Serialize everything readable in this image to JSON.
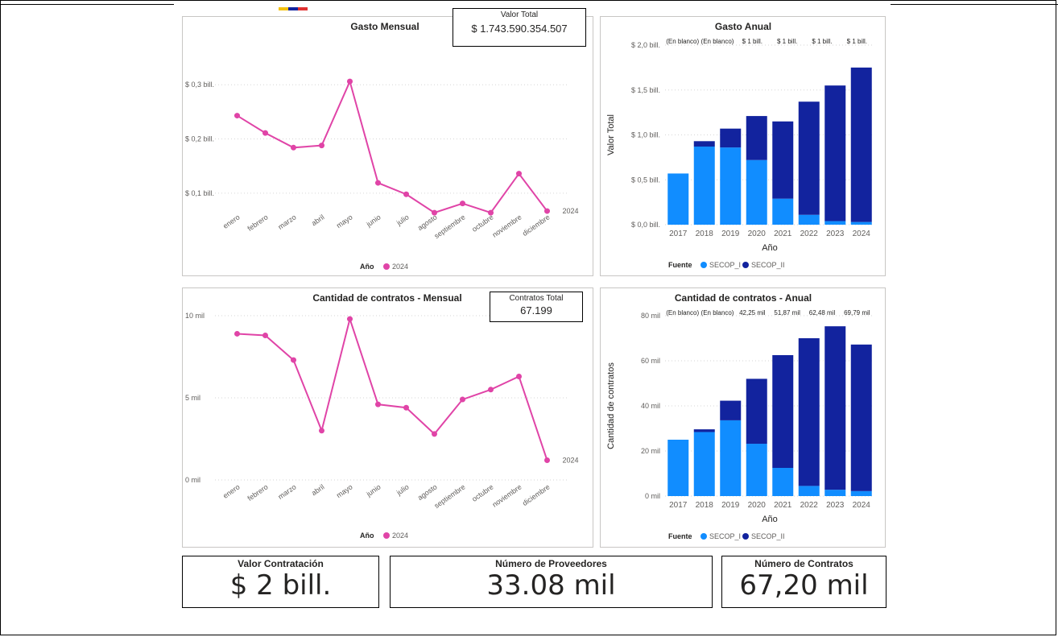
{
  "colors": {
    "line": "#e044a7",
    "secop_i": "#118dff",
    "secop_ii": "#12239e"
  },
  "months": [
    "enero",
    "febrero",
    "marzo",
    "abril",
    "mayo",
    "junio",
    "julio",
    "agosto",
    "septiembre",
    "octubre",
    "noviembre",
    "diciembre"
  ],
  "years": [
    "2017",
    "2018",
    "2019",
    "2020",
    "2021",
    "2022",
    "2023",
    "2024"
  ],
  "cards": {
    "valor_total": {
      "title": "Valor Total",
      "value": "$ 1.743.590.354.507"
    },
    "contratos_total": {
      "title": "Contratos Total",
      "value": "67.199"
    }
  },
  "kpis": [
    {
      "title": "Valor Contratación",
      "value": "$ 2 bill."
    },
    {
      "title": "Número de Proveedores",
      "value": "33.08 mil"
    },
    {
      "title": "Número de Contratos",
      "value": "67,20 mil"
    }
  ],
  "chart_data": [
    {
      "type": "line",
      "title": "Gasto Mensual",
      "x": [
        "enero",
        "febrero",
        "marzo",
        "abril",
        "mayo",
        "junio",
        "julio",
        "agosto",
        "septiembre",
        "octubre",
        "noviembre",
        "diciembre"
      ],
      "y_ticks": [
        {
          "value": 0.1,
          "label": "$ 0,1 bill."
        },
        {
          "value": 0.2,
          "label": "$ 0,2 bill."
        },
        {
          "value": 0.3,
          "label": "$ 0,3 bill."
        }
      ],
      "ylim": [
        0.03,
        0.33
      ],
      "series": [
        {
          "name": "2024",
          "values": [
            0.243,
            0.211,
            0.184,
            0.188,
            0.306,
            0.119,
            0.098,
            0.064,
            0.081,
            0.064,
            0.136,
            0.067
          ]
        }
      ],
      "end_label": "2024",
      "legend": {
        "title": "Año",
        "items": [
          "2024"
        ],
        "position": "bottom"
      },
      "grid": true
    },
    {
      "type": "bar",
      "stacked": true,
      "title": "Gasto Anual",
      "categories": [
        "2017",
        "2018",
        "2019",
        "2020",
        "2021",
        "2022",
        "2023",
        "2024"
      ],
      "series": [
        {
          "name": "SECOP_I",
          "values": [
            0.57,
            0.87,
            0.86,
            0.72,
            0.29,
            0.11,
            0.04,
            0.03
          ]
        },
        {
          "name": "SECOP_II",
          "values": [
            0.0,
            0.06,
            0.21,
            0.49,
            0.86,
            1.26,
            1.51,
            1.72
          ]
        }
      ],
      "y_ticks": [
        {
          "value": 0,
          "label": "$ 0,0 bill."
        },
        {
          "value": 0.5,
          "label": "$ 0,5 bill."
        },
        {
          "value": 1.0,
          "label": "$ 1,0 bill."
        },
        {
          "value": 1.5,
          "label": "$ 1,5 bill."
        },
        {
          "value": 2.0,
          "label": "$ 2,0 bill."
        }
      ],
      "ylim": [
        0,
        2.0
      ],
      "top_labels": [
        "(En blanco)",
        "(En blanco)",
        "$ 1 bill.",
        "$ 1 bill.",
        "$ 1 bill.",
        "$ 1 bill."
      ],
      "xlabel": "Año",
      "ylabel": "Valor Total",
      "legend": {
        "title": "Fuente",
        "items": [
          "SECOP_I",
          "SECOP_II"
        ],
        "position": "bottom"
      },
      "grid": true
    },
    {
      "type": "line",
      "title": "Cantidad de contratos - Mensual",
      "x": [
        "enero",
        "febrero",
        "marzo",
        "abril",
        "mayo",
        "junio",
        "julio",
        "agosto",
        "septiembre",
        "octubre",
        "noviembre",
        "diciembre"
      ],
      "y_ticks": [
        {
          "value": 0,
          "label": "0 mil"
        },
        {
          "value": 5,
          "label": "5 mil"
        },
        {
          "value": 10,
          "label": "10 mil"
        }
      ],
      "ylim": [
        0,
        10
      ],
      "series": [
        {
          "name": "2024",
          "values": [
            8.9,
            8.8,
            7.3,
            3.0,
            9.8,
            4.6,
            4.4,
            2.8,
            4.9,
            5.5,
            6.3,
            1.2
          ]
        }
      ],
      "end_label": "2024",
      "legend": {
        "title": "Año",
        "items": [
          "2024"
        ],
        "position": "bottom"
      },
      "grid": true
    },
    {
      "type": "bar",
      "stacked": true,
      "title": "Cantidad de contratos - Anual",
      "categories": [
        "2017",
        "2018",
        "2019",
        "2020",
        "2021",
        "2022",
        "2023",
        "2024"
      ],
      "series": [
        {
          "name": "SECOP_I",
          "values": [
            25.0,
            28.4,
            33.6,
            23.2,
            12.5,
            4.5,
            2.8,
            2.2
          ]
        },
        {
          "name": "SECOP_II",
          "values": [
            0.0,
            1.2,
            8.7,
            28.8,
            50.0,
            65.5,
            72.5,
            65.0
          ]
        }
      ],
      "y_ticks": [
        {
          "value": 0,
          "label": "0 mil"
        },
        {
          "value": 20,
          "label": "20 mil"
        },
        {
          "value": 40,
          "label": "40 mil"
        },
        {
          "value": 60,
          "label": "60 mil"
        },
        {
          "value": 80,
          "label": "80 mil"
        }
      ],
      "ylim": [
        0,
        80
      ],
      "top_labels": [
        "(En blanco)",
        "(En blanco)",
        "42,25 mil",
        "51,87 mil",
        "62,48 mil",
        "69,79 mil"
      ],
      "xlabel": "Año",
      "ylabel": "Cantidad de contratos",
      "legend": {
        "title": "Fuente",
        "items": [
          "SECOP_I",
          "SECOP_II"
        ],
        "position": "bottom"
      },
      "grid": true
    }
  ]
}
